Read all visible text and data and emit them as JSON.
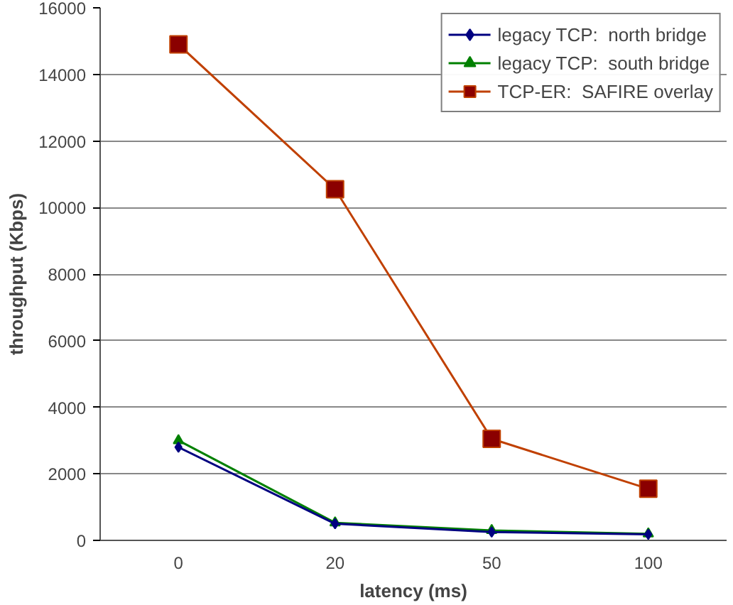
{
  "chart_data": {
    "type": "line",
    "xlabel": "latency (ms)",
    "ylabel": "throughput (Kbps)",
    "categories": [
      "0",
      "20",
      "50",
      "100"
    ],
    "series": [
      {
        "name": "legacy TCP:  north bridge",
        "color": "#000080",
        "marker": "diamond",
        "values": [
          2800,
          500,
          250,
          180
        ]
      },
      {
        "name": "legacy TCP:  south bridge",
        "color": "#008000",
        "marker": "triangle",
        "values": [
          3000,
          530,
          300,
          200
        ]
      },
      {
        "name": "TCP-ER:  SAFIRE overlay",
        "color": "#c04000",
        "marker": "square",
        "values": [
          14900,
          10550,
          3050,
          1550
        ]
      }
    ],
    "ylim": [
      0,
      16000
    ],
    "yticks": [
      0,
      2000,
      4000,
      6000,
      8000,
      10000,
      12000,
      14000,
      16000
    ],
    "grid": "y",
    "legend": "top right",
    "line_style": "solid"
  }
}
